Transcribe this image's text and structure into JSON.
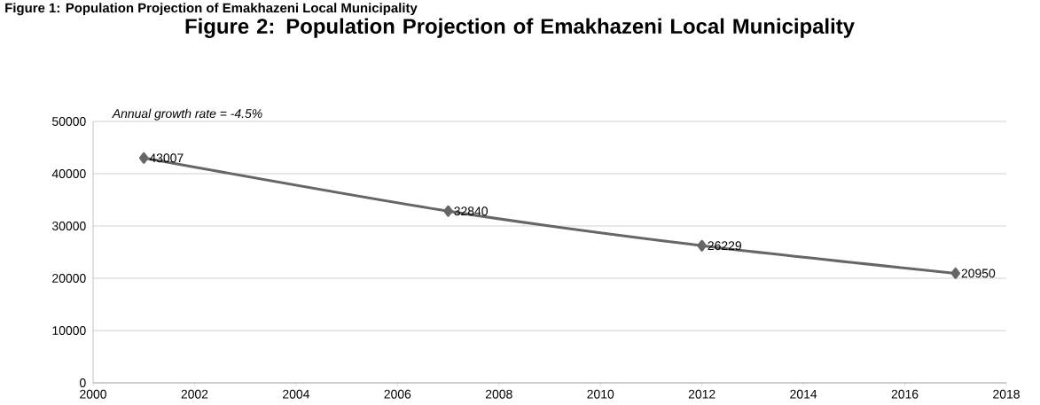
{
  "chart_data": {
    "type": "line",
    "title": "Figure 2: Population Projection of Emakhazeni Local Municipality",
    "annotations": [
      "Figure 1: Population Projection of Emakhazeni Local Municipality",
      "Annual growth rate = -4.5%"
    ],
    "x": [
      2001,
      2007,
      2012,
      2017
    ],
    "series": [
      {
        "color": "#666666",
        "values": [
          43007,
          32840,
          26229,
          20950
        ]
      }
    ],
    "xlim": [
      2000,
      2018
    ],
    "xticks": [
      2000,
      2002,
      2004,
      2006,
      2008,
      2010,
      2012,
      2014,
      2016,
      2018
    ],
    "ylim": [
      0,
      50000
    ],
    "yticks": [
      0,
      10000,
      20000,
      30000,
      40000,
      50000
    ],
    "grid": "y",
    "marker": "diamond",
    "data_labels": true
  }
}
